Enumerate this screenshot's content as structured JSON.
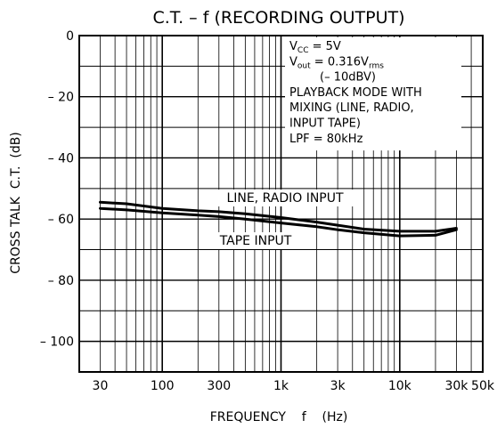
{
  "chart_data": {
    "type": "line",
    "title": "C.T.  –  f (RECORDING OUTPUT)",
    "xlabel": "FREQUENCY    f    (Hz)",
    "ylabel": "CROSS TALK  C.T.  (dB)",
    "x_scale": "log",
    "xlim": [
      20,
      50000
    ],
    "ylim": [
      -110,
      0
    ],
    "grid": true,
    "x_ticks": [
      {
        "value": 30,
        "label": "30"
      },
      {
        "value": 100,
        "label": "100"
      },
      {
        "value": 300,
        "label": "300"
      },
      {
        "value": 1000,
        "label": "1k"
      },
      {
        "value": 3000,
        "label": "3k"
      },
      {
        "value": 10000,
        "label": "10k"
      },
      {
        "value": 30000,
        "label": "30k"
      },
      {
        "value": 50000,
        "label": "50k"
      }
    ],
    "y_ticks": [
      {
        "value": 0,
        "label": "0"
      },
      {
        "value": -20,
        "label": "– 20"
      },
      {
        "value": -40,
        "label": "– 40"
      },
      {
        "value": -60,
        "label": "– 60"
      },
      {
        "value": -80,
        "label": "– 80"
      },
      {
        "value": -100,
        "label": "– 100"
      }
    ],
    "conditions": [
      {
        "main": "V",
        "sub": "CC",
        "rest": " = 5V"
      },
      {
        "main": "V",
        "sub": "out",
        "rest": " =  0.316V",
        "sub2": "rms"
      },
      {
        "main": "(– 10dBV)"
      },
      {
        "main": "PLAYBACK MODE WITH"
      },
      {
        "main": "MIXING (LINE, RADIO,"
      },
      {
        "main": "INPUT TAPE)"
      },
      {
        "main": "LPF = 80kHz"
      }
    ],
    "series": [
      {
        "name": "LINE, RADIO INPUT",
        "x": [
          30,
          50,
          100,
          200,
          300,
          500,
          1000,
          2000,
          3000,
          5000,
          10000,
          20000,
          30000
        ],
        "y": [
          -54.5,
          -55,
          -56.5,
          -57.3,
          -57.6,
          -58.3,
          -59.5,
          -61,
          -62,
          -63.3,
          -64,
          -64,
          -63
        ]
      },
      {
        "name": "TAPE INPUT",
        "x": [
          30,
          50,
          100,
          200,
          300,
          500,
          1000,
          2000,
          3000,
          5000,
          10000,
          20000,
          30000
        ],
        "y": [
          -56.5,
          -57,
          -58,
          -58.7,
          -59.2,
          -60,
          -61.3,
          -62.5,
          -63.5,
          -64.5,
          -65.5,
          -65.3,
          -63.5
        ]
      }
    ],
    "colors": {
      "line": "#000000",
      "grid": "#000000",
      "background": "#ffffff"
    }
  }
}
